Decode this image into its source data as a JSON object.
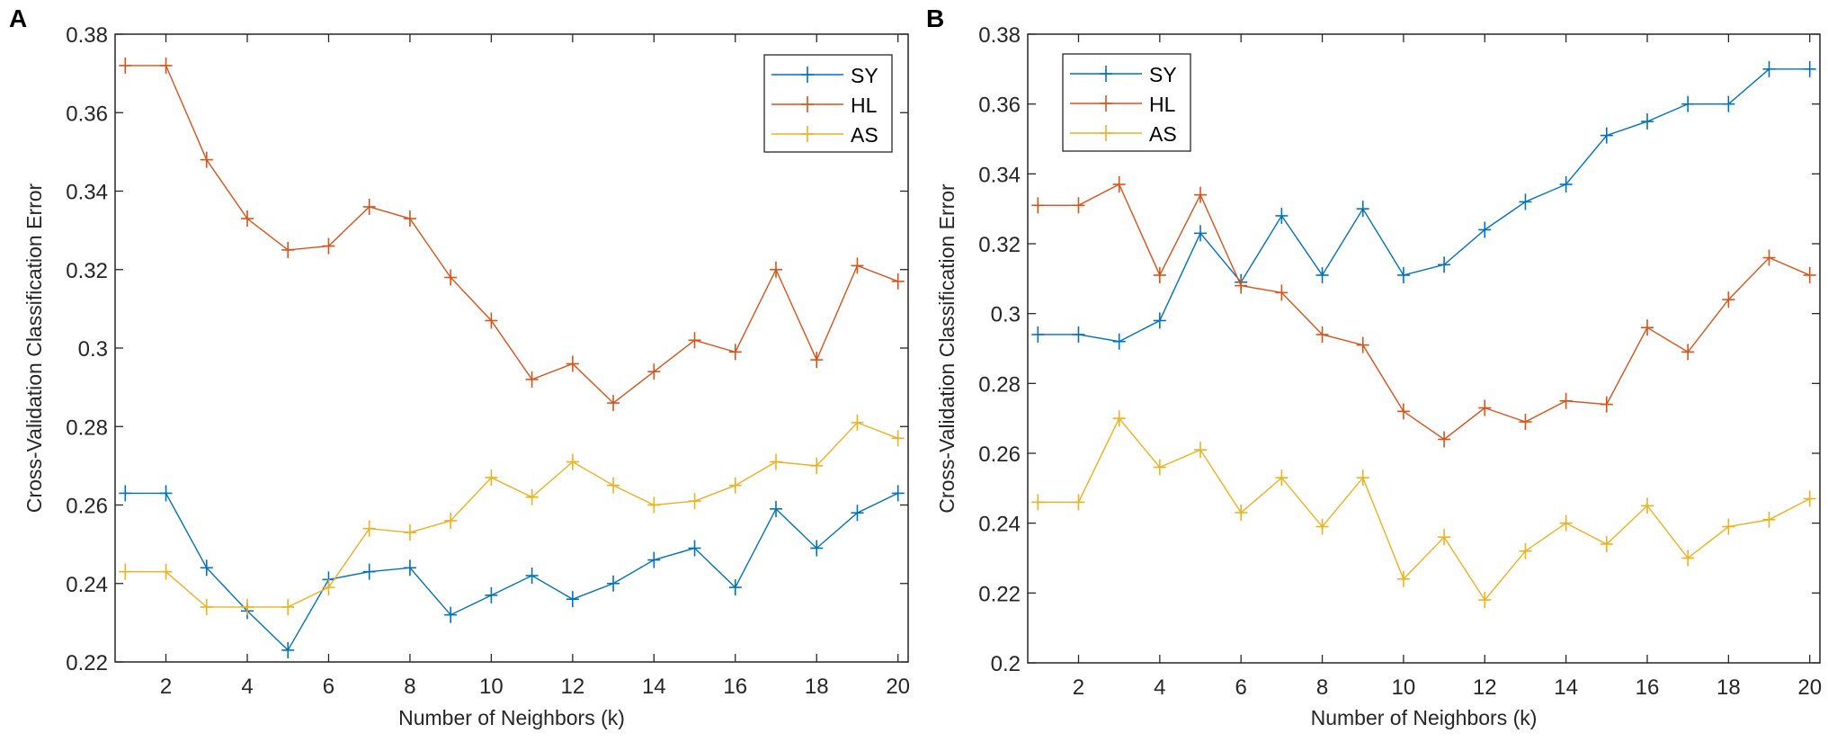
{
  "chart_data": [
    {
      "type": "line",
      "panel_label": "A",
      "xlabel": "Number of Neighbors (k)",
      "ylabel": "Cross-Validation Classification Error",
      "xlim": [
        0.75,
        20.25
      ],
      "ylim": [
        0.22,
        0.38
      ],
      "xticks": [
        2,
        4,
        6,
        8,
        10,
        12,
        14,
        16,
        18,
        20
      ],
      "xtick_labels": [
        "2",
        "4",
        "6",
        "8",
        "10",
        "12",
        "14",
        "16",
        "18",
        "20"
      ],
      "yticks": [
        0.22,
        0.24,
        0.26,
        0.28,
        0.3,
        0.32,
        0.34,
        0.36,
        0.38
      ],
      "ytick_labels": [
        "0.22",
        "0.24",
        "0.26",
        "0.28",
        "0.3",
        "0.32",
        "0.34",
        "0.36",
        "0.38"
      ],
      "legend_position": "top-right",
      "x": [
        1,
        2,
        3,
        4,
        5,
        6,
        7,
        8,
        9,
        10,
        11,
        12,
        13,
        14,
        15,
        16,
        17,
        18,
        19,
        20
      ],
      "series": [
        {
          "name": "SY",
          "color": "#0072BD",
          "values": [
            0.263,
            0.263,
            0.244,
            0.233,
            0.223,
            0.241,
            0.243,
            0.244,
            0.232,
            0.237,
            0.242,
            0.236,
            0.24,
            0.246,
            0.249,
            0.239,
            0.259,
            0.249,
            0.258,
            0.263
          ]
        },
        {
          "name": "HL",
          "color": "#D95319",
          "values": [
            0.372,
            0.372,
            0.348,
            0.333,
            0.325,
            0.326,
            0.336,
            0.333,
            0.318,
            0.307,
            0.292,
            0.296,
            0.286,
            0.294,
            0.302,
            0.299,
            0.32,
            0.297,
            0.321,
            0.317
          ]
        },
        {
          "name": "AS",
          "color": "#EDB120",
          "values": [
            0.243,
            0.243,
            0.234,
            0.234,
            0.234,
            0.239,
            0.254,
            0.253,
            0.256,
            0.267,
            0.262,
            0.271,
            0.265,
            0.26,
            0.261,
            0.265,
            0.271,
            0.27,
            0.281,
            0.277
          ]
        }
      ]
    },
    {
      "type": "line",
      "panel_label": "B",
      "xlabel": "Number of Neighbors (k)",
      "ylabel": "Cross-Validation Classification Error",
      "xlim": [
        0.75,
        20.25
      ],
      "ylim": [
        0.2,
        0.38
      ],
      "xticks": [
        2,
        4,
        6,
        8,
        10,
        12,
        14,
        16,
        18,
        20
      ],
      "xtick_labels": [
        "2",
        "4",
        "6",
        "8",
        "10",
        "12",
        "14",
        "16",
        "18",
        "20"
      ],
      "yticks": [
        0.2,
        0.22,
        0.24,
        0.26,
        0.28,
        0.3,
        0.32,
        0.34,
        0.36,
        0.38
      ],
      "ytick_labels": [
        "0.2",
        "0.22",
        "0.24",
        "0.26",
        "0.28",
        "0.3",
        "0.32",
        "0.34",
        "0.36",
        "0.38"
      ],
      "legend_position": "top-left",
      "x": [
        1,
        2,
        3,
        4,
        5,
        6,
        7,
        8,
        9,
        10,
        11,
        12,
        13,
        14,
        15,
        16,
        17,
        18,
        19,
        20
      ],
      "series": [
        {
          "name": "SY",
          "color": "#0072BD",
          "values": [
            0.294,
            0.294,
            0.292,
            0.298,
            0.323,
            0.309,
            0.328,
            0.311,
            0.33,
            0.311,
            0.314,
            0.324,
            0.332,
            0.337,
            0.351,
            0.355,
            0.36,
            0.36,
            0.37,
            0.37
          ]
        },
        {
          "name": "HL",
          "color": "#D95319",
          "values": [
            0.331,
            0.331,
            0.337,
            0.311,
            0.334,
            0.308,
            0.306,
            0.294,
            0.291,
            0.272,
            0.264,
            0.273,
            0.269,
            0.275,
            0.274,
            0.296,
            0.289,
            0.304,
            0.316,
            0.311
          ]
        },
        {
          "name": "AS",
          "color": "#EDB120",
          "values": [
            0.246,
            0.246,
            0.27,
            0.256,
            0.261,
            0.243,
            0.253,
            0.239,
            0.253,
            0.224,
            0.236,
            0.218,
            0.232,
            0.24,
            0.234,
            0.245,
            0.23,
            0.239,
            0.241,
            0.247
          ]
        }
      ]
    }
  ]
}
